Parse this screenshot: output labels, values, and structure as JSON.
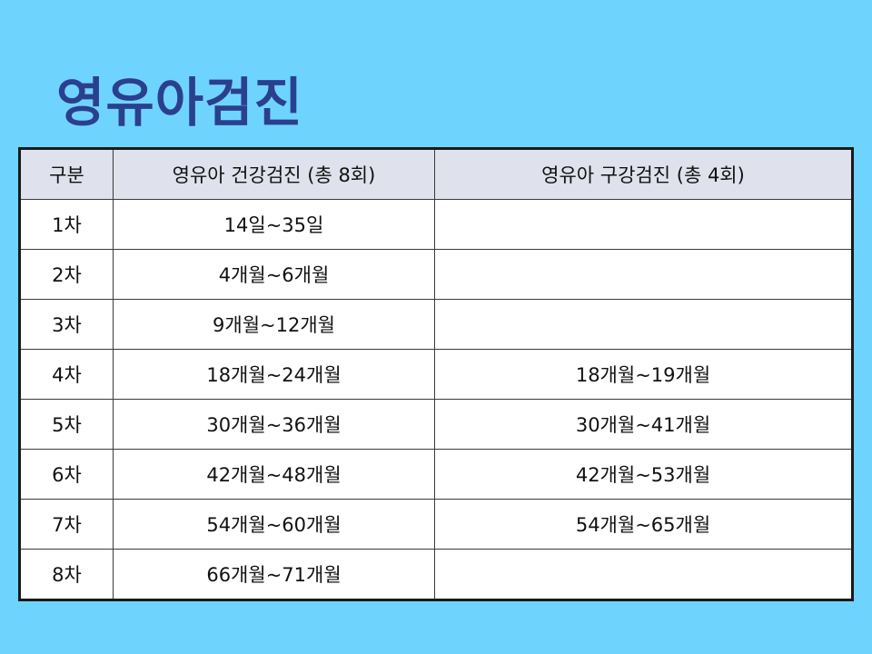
{
  "title": "영유아검진",
  "table": {
    "headers": [
      "구분",
      "영유아 건강검진 (총 8회)",
      "영유아 구강검진 (총 4회)"
    ],
    "rows": [
      {
        "round": "1차",
        "health": "14일~35일",
        "oral": ""
      },
      {
        "round": "2차",
        "health": "4개월~6개월",
        "oral": ""
      },
      {
        "round": "3차",
        "health": "9개월~12개월",
        "oral": ""
      },
      {
        "round": "4차",
        "health": "18개월~24개월",
        "oral": "18개월~19개월"
      },
      {
        "round": "5차",
        "health": "30개월~36개월",
        "oral": "30개월~41개월"
      },
      {
        "round": "6차",
        "health": "42개월~48개월",
        "oral": "42개월~53개월"
      },
      {
        "round": "7차",
        "health": "54개월~60개월",
        "oral": "54개월~65개월"
      },
      {
        "round": "8차",
        "health": "66개월~71개월",
        "oral": ""
      }
    ]
  },
  "colors": {
    "background": "#6fd4fd",
    "title": "#2b3f8f",
    "header_bg": "#dfe1ec",
    "cell_bg": "#ffffff",
    "border": "#1a1a1a"
  }
}
